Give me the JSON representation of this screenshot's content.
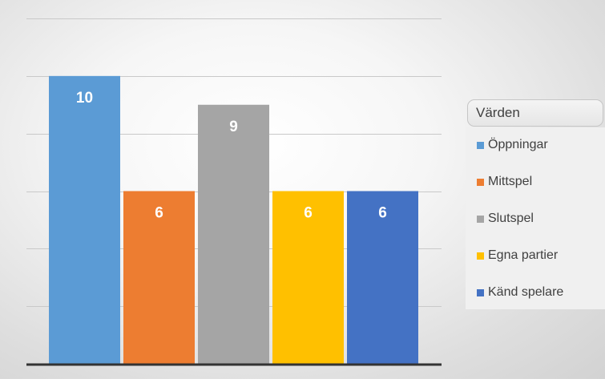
{
  "chart_data": {
    "type": "bar",
    "categories": [
      "Öppningar",
      "Mittspel",
      "Slutspel",
      "Egna partier",
      "Känd spelare"
    ],
    "values": [
      10,
      6,
      9,
      6,
      6
    ],
    "colors": [
      "#5b9bd5",
      "#ed7d31",
      "#a5a5a5",
      "#ffc000",
      "#4472c4"
    ],
    "title": "",
    "xlabel": "",
    "ylabel": "",
    "ylim": [
      0,
      12
    ],
    "grid": true,
    "data_labels": true,
    "legend": {
      "title": "Värden",
      "placement": "right",
      "entries": [
        "Öppningar",
        "Mittspel",
        "Slutspel",
        "Egna partier",
        "Känd spelare"
      ]
    }
  }
}
